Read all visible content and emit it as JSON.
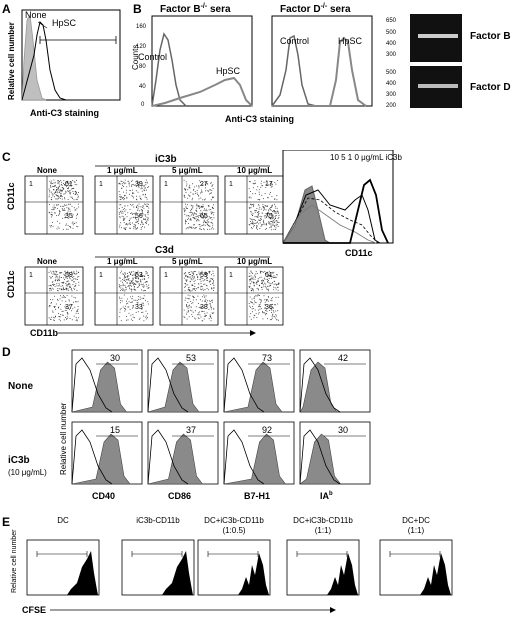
{
  "panels": {
    "A": {
      "letter": "A",
      "legend_none": "None",
      "legend_hpsc": "HpSC",
      "ylabel": "Relative cell number",
      "xlabel": "Anti-C3 staining"
    },
    "B": {
      "letter": "B",
      "title_factorB": "Factor B",
      "title_factorB_sup": "-/-",
      "title_factorB_tail": " sera",
      "title_factorD": "Factor D",
      "title_factorD_sup": "-/-",
      "title_factorD_tail": " sera",
      "ylabel": "Counts",
      "yticks": [
        "0",
        "40",
        "80",
        "120",
        "160"
      ],
      "label_control": "Control",
      "label_hpsc": "HpSC",
      "label_control2": "Control",
      "label_hpsc2": "HpSC",
      "xlabel": "Anti-C3 staining",
      "gel_markers_top": [
        "650",
        "500",
        "400",
        "300"
      ],
      "gel_markers_bottom": [
        "500",
        "400",
        "300",
        "200"
      ],
      "gel_label_top": "Factor B",
      "gel_label_bottom": "Factor D"
    },
    "C": {
      "letter": "C",
      "header_ic3b": "iC3b",
      "header_c3d": "C3d",
      "ylabel": "CD11c",
      "xlabel": "CD11b",
      "row1": [
        {
          "title": "None",
          "ul": "1",
          "ur": "61",
          "lr": "35"
        },
        {
          "title": "1 μg/mL",
          "ul": "1",
          "ur": "39",
          "lr": "56"
        },
        {
          "title": "5 μg/mL",
          "ul": "1",
          "ur": "27",
          "lr": "65"
        },
        {
          "title": "10 μg/mL",
          "ul": "1",
          "ur": "17",
          "lr": "75"
        }
      ],
      "row2": [
        {
          "title": "None",
          "ul": "1",
          "ur": "59",
          "lr": "37"
        },
        {
          "title": "1 μg/mL",
          "ul": "1",
          "ur": "63",
          "lr": "33"
        },
        {
          "title": "5 μg/mL",
          "ul": "1",
          "ur": "59",
          "lr": "38"
        },
        {
          "title": "10 μg/mL",
          "ul": "1",
          "ur": "61",
          "lr": "36"
        }
      ],
      "hist_label": "10   5   1   0 μg/mL iC3b",
      "hist_xlabel": "CD11c"
    },
    "D": {
      "letter": "D",
      "row_none": "None",
      "row_ic3b": "iC3b",
      "row_ic3b_conc": "(10 μg/mL)",
      "ylabel": "Relative cell number",
      "markers": [
        "CD40",
        "CD86",
        "B7-H1",
        "IA"
      ],
      "marker_ia_sup": "b",
      "values_none": [
        "30",
        "53",
        "73",
        "42"
      ],
      "values_ic3b": [
        "15",
        "37",
        "92",
        "30"
      ]
    },
    "E": {
      "letter": "E",
      "ylabel": "Relative cell number",
      "xlabel": "CFSE",
      "titles": [
        "DC",
        "iC3b-CD11b",
        "DC+iC3b-CD11b",
        "DC+iC3b-CD11b",
        "DC+DC"
      ],
      "subtitles": [
        "",
        "",
        "(1:0.5)",
        "(1:1)",
        "(1:1)"
      ]
    }
  }
}
